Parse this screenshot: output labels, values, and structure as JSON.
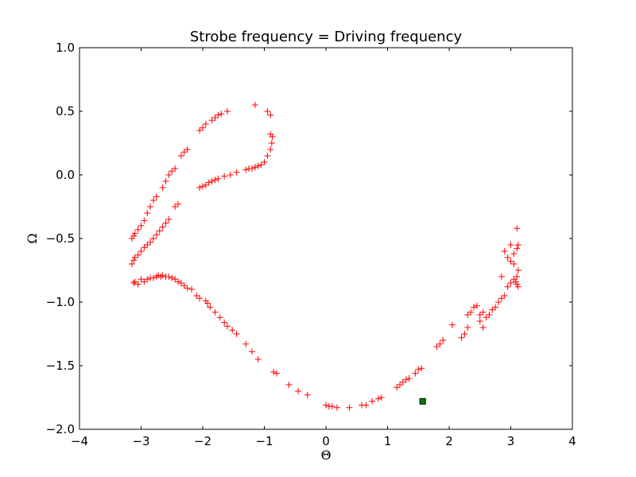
{
  "chart_data": {
    "type": "scatter",
    "title": "Strobe frequency = Driving frequency",
    "xlabel": "Θ",
    "ylabel": "Ω",
    "xlim": [
      -4,
      4
    ],
    "ylim": [
      -2.0,
      1.0
    ],
    "xticks": [
      -4,
      -3,
      -2,
      -1,
      0,
      1,
      2,
      3,
      4
    ],
    "yticks": [
      -2.0,
      -1.5,
      -1.0,
      -0.5,
      0.0,
      0.5,
      1.0
    ],
    "xtick_labels": [
      "−4",
      "−3",
      "−2",
      "−1",
      "0",
      "1",
      "2",
      "3",
      "4"
    ],
    "ytick_labels": [
      "−2.0",
      "−1.5",
      "−1.0",
      "−0.5",
      "0.0",
      "0.5",
      "1.0"
    ],
    "grid": false,
    "series": [
      {
        "marker": "plus",
        "color": "#ff0000",
        "points": [
          [
            -3.12,
            -0.85
          ],
          [
            -3.1,
            -0.84
          ],
          [
            -3.05,
            -0.86
          ],
          [
            -3.0,
            -0.82
          ],
          [
            -2.95,
            -0.84
          ],
          [
            -2.9,
            -0.82
          ],
          [
            -2.85,
            -0.81
          ],
          [
            -2.8,
            -0.81
          ],
          [
            -2.75,
            -0.8
          ],
          [
            -2.72,
            -0.79
          ],
          [
            -2.68,
            -0.8
          ],
          [
            -2.65,
            -0.79
          ],
          [
            -2.6,
            -0.8
          ],
          [
            -2.55,
            -0.8
          ],
          [
            -2.5,
            -0.81
          ],
          [
            -2.45,
            -0.82
          ],
          [
            -2.4,
            -0.84
          ],
          [
            -2.35,
            -0.85
          ],
          [
            -2.3,
            -0.87
          ],
          [
            -2.25,
            -0.89
          ],
          [
            -2.18,
            -0.9
          ],
          [
            -2.1,
            -0.95
          ],
          [
            -2.05,
            -0.97
          ],
          [
            -1.95,
            -0.99
          ],
          [
            -1.92,
            -1.01
          ],
          [
            -1.88,
            -1.04
          ],
          [
            -1.8,
            -1.08
          ],
          [
            -1.72,
            -1.12
          ],
          [
            -1.65,
            -1.16
          ],
          [
            -1.6,
            -1.19
          ],
          [
            -1.52,
            -1.22
          ],
          [
            -1.45,
            -1.25
          ],
          [
            -1.3,
            -1.33
          ],
          [
            -1.2,
            -1.39
          ],
          [
            -1.1,
            -1.45
          ],
          [
            -0.85,
            -1.55
          ],
          [
            -0.8,
            -1.56
          ],
          [
            -0.6,
            -1.65
          ],
          [
            -0.45,
            -1.7
          ],
          [
            -0.3,
            -1.73
          ],
          [
            0.0,
            -1.81
          ],
          [
            0.05,
            -1.82
          ],
          [
            0.1,
            -1.82
          ],
          [
            0.18,
            -1.83
          ],
          [
            0.38,
            -1.83
          ],
          [
            0.58,
            -1.81
          ],
          [
            0.65,
            -1.81
          ],
          [
            0.75,
            -1.78
          ],
          [
            0.85,
            -1.76
          ],
          [
            0.9,
            -1.75
          ],
          [
            1.15,
            -1.67
          ],
          [
            1.2,
            -1.65
          ],
          [
            1.25,
            -1.63
          ],
          [
            1.3,
            -1.61
          ],
          [
            1.35,
            -1.6
          ],
          [
            1.45,
            -1.56
          ],
          [
            1.5,
            -1.53
          ],
          [
            1.55,
            -1.52
          ],
          [
            1.8,
            -1.35
          ],
          [
            1.85,
            -1.33
          ],
          [
            1.9,
            -1.3
          ],
          [
            2.05,
            -1.18
          ],
          [
            2.2,
            -1.28
          ],
          [
            2.25,
            -1.25
          ],
          [
            2.3,
            -1.2
          ],
          [
            2.3,
            -1.1
          ],
          [
            2.35,
            -1.08
          ],
          [
            2.4,
            -1.04
          ],
          [
            2.45,
            -1.03
          ],
          [
            2.5,
            -1.1
          ],
          [
            2.5,
            -1.15
          ],
          [
            2.55,
            -1.08
          ],
          [
            2.55,
            -1.2
          ],
          [
            2.6,
            -1.12
          ],
          [
            2.65,
            -1.1
          ],
          [
            2.7,
            -1.06
          ],
          [
            2.75,
            -1.04
          ],
          [
            2.8,
            -1.0
          ],
          [
            2.85,
            -0.97
          ],
          [
            2.85,
            -0.8
          ],
          [
            2.9,
            -0.95
          ],
          [
            2.95,
            -0.88
          ],
          [
            3.0,
            -0.85
          ],
          [
            3.05,
            -0.82
          ],
          [
            3.08,
            -0.84
          ],
          [
            3.1,
            -0.86
          ],
          [
            3.12,
            -0.88
          ],
          [
            3.1,
            -0.8
          ],
          [
            3.12,
            -0.75
          ],
          [
            2.95,
            -0.65
          ],
          [
            3.0,
            -0.68
          ],
          [
            3.05,
            -0.62
          ],
          [
            3.1,
            -0.58
          ],
          [
            3.12,
            -0.55
          ],
          [
            3.0,
            -0.55
          ],
          [
            3.1,
            -0.42
          ],
          [
            2.9,
            -0.6
          ],
          [
            3.05,
            -0.7
          ],
          [
            -3.15,
            -0.7
          ],
          [
            -3.12,
            -0.67
          ],
          [
            -3.1,
            -0.65
          ],
          [
            -3.05,
            -0.63
          ],
          [
            -3.0,
            -0.6
          ],
          [
            -2.95,
            -0.57
          ],
          [
            -2.9,
            -0.55
          ],
          [
            -2.85,
            -0.53
          ],
          [
            -2.8,
            -0.5
          ],
          [
            -2.75,
            -0.47
          ],
          [
            -2.7,
            -0.44
          ],
          [
            -2.65,
            -0.41
          ],
          [
            -2.6,
            -0.38
          ],
          [
            -2.55,
            -0.35
          ],
          [
            -2.45,
            -0.25
          ],
          [
            -2.4,
            -0.23
          ],
          [
            -2.05,
            -0.1
          ],
          [
            -2.0,
            -0.09
          ],
          [
            -1.95,
            -0.08
          ],
          [
            -1.9,
            -0.06
          ],
          [
            -1.85,
            -0.05
          ],
          [
            -1.8,
            -0.04
          ],
          [
            -1.75,
            -0.03
          ],
          [
            -1.65,
            -0.01
          ],
          [
            -1.55,
            0.0
          ],
          [
            -1.45,
            0.02
          ],
          [
            -1.3,
            0.04
          ],
          [
            -1.25,
            0.05
          ],
          [
            -1.2,
            0.05
          ],
          [
            -1.15,
            0.06
          ],
          [
            -1.1,
            0.07
          ],
          [
            -1.05,
            0.08
          ],
          [
            -1.0,
            0.1
          ],
          [
            -0.95,
            0.15
          ],
          [
            -0.9,
            0.2
          ],
          [
            -0.88,
            0.25
          ],
          [
            -0.87,
            0.3
          ],
          [
            -0.9,
            0.32
          ],
          [
            -3.15,
            -0.5
          ],
          [
            -3.12,
            -0.48
          ],
          [
            -3.1,
            -0.46
          ],
          [
            -3.05,
            -0.43
          ],
          [
            -3.0,
            -0.4
          ],
          [
            -2.95,
            -0.36
          ],
          [
            -2.9,
            -0.3
          ],
          [
            -2.85,
            -0.25
          ],
          [
            -2.8,
            -0.2
          ],
          [
            -2.75,
            -0.17
          ],
          [
            -2.65,
            -0.1
          ],
          [
            -2.6,
            -0.05
          ],
          [
            -2.55,
            0.0
          ],
          [
            -2.5,
            0.03
          ],
          [
            -2.45,
            0.05
          ],
          [
            -2.35,
            0.15
          ],
          [
            -2.3,
            0.18
          ],
          [
            -2.25,
            0.2
          ],
          [
            -2.05,
            0.35
          ],
          [
            -2.0,
            0.37
          ],
          [
            -1.95,
            0.4
          ],
          [
            -1.85,
            0.43
          ],
          [
            -1.8,
            0.45
          ],
          [
            -1.75,
            0.47
          ],
          [
            -1.7,
            0.48
          ],
          [
            -1.6,
            0.5
          ],
          [
            -1.15,
            0.55
          ],
          [
            -0.95,
            0.5
          ],
          [
            -0.9,
            0.47
          ]
        ]
      },
      {
        "marker": "square",
        "color": "#008000",
        "points": [
          [
            1.57,
            -1.78
          ]
        ]
      }
    ]
  }
}
